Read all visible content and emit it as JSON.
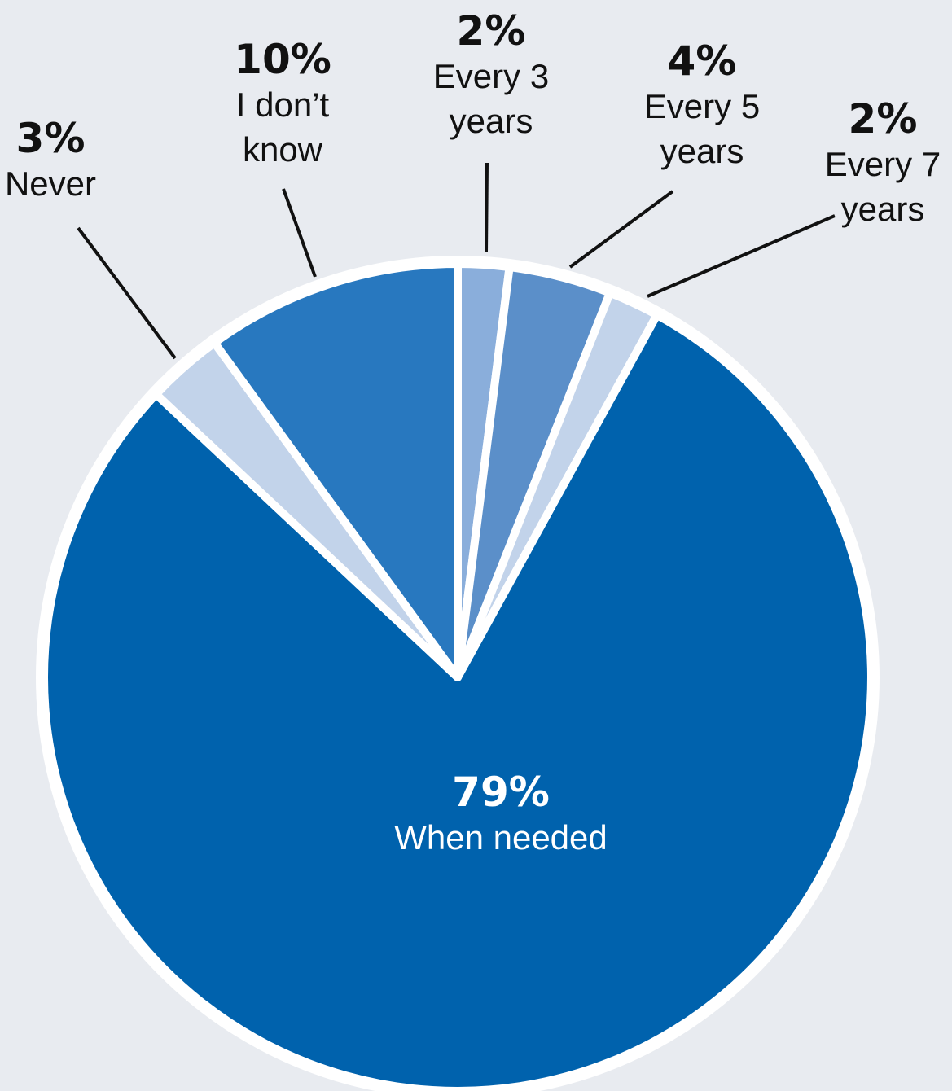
{
  "chart_data": {
    "type": "pie",
    "slices": [
      {
        "key": "every3",
        "percent_label": "2%",
        "label_lines": [
          "Every 3",
          "years"
        ],
        "value": 2,
        "color": "#8aaedb"
      },
      {
        "key": "every5",
        "percent_label": "4%",
        "label_lines": [
          "Every 5",
          "years"
        ],
        "value": 4,
        "color": "#5b8fc9"
      },
      {
        "key": "every7",
        "percent_label": "2%",
        "label_lines": [
          "Every 7",
          "years"
        ],
        "value": 2,
        "color": "#c2d3ea"
      },
      {
        "key": "when_needed",
        "percent_label": "79%",
        "label_lines": [
          "When needed"
        ],
        "value": 79,
        "color": "#0062ad"
      },
      {
        "key": "never",
        "percent_label": "3%",
        "label_lines": [
          "Never"
        ],
        "value": 3,
        "color": "#c2d3ea"
      },
      {
        "key": "dont_know",
        "percent_label": "10%",
        "label_lines": [
          "I don’t",
          "know"
        ],
        "value": 10,
        "color": "#2878bf"
      }
    ],
    "legend": "none (direct labels with leader lines)"
  },
  "colors": {
    "background": "#e8ebf0",
    "outline": "#ffffff",
    "leader_lines": "#111111",
    "outside_text": "#111111",
    "inside_text": "#ffffff"
  }
}
